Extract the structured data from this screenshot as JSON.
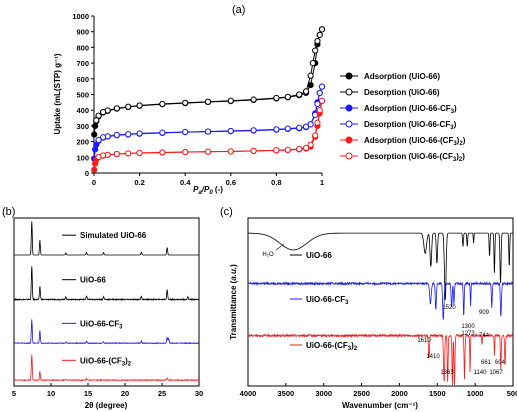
{
  "chart_data": [
    {
      "panel_label": "(a)",
      "type": "scatter",
      "ylabel": "Uptake (mL(STP) g⁻¹)",
      "xlabel": "Pₐ/P₀ (-)",
      "xlabel_parts": {
        "p1": "P",
        "s1": "a",
        "p2": "/P",
        "s2": "0",
        "p3": " (-)"
      },
      "xlim": [
        0,
        1
      ],
      "ylim": [
        0,
        1000
      ],
      "xticks": [
        "0",
        "0.2",
        "0.4",
        "0.6",
        "0.8",
        "1"
      ],
      "yticks": [
        "0",
        "100",
        "200",
        "300",
        "400",
        "500",
        "600",
        "700",
        "800",
        "900",
        "1000"
      ],
      "legend_position": "right",
      "series": [
        {
          "name": "Adsorption (UiO-66)",
          "name_parts": [
            "Adsorption (UiO-66)"
          ],
          "color": "#000000",
          "filled": true,
          "x": [
            0.001,
            0.005,
            0.01,
            0.02,
            0.04,
            0.06,
            0.1,
            0.15,
            0.2,
            0.3,
            0.4,
            0.5,
            0.6,
            0.7,
            0.8,
            0.85,
            0.9,
            0.93,
            0.95,
            0.97,
            0.98,
            0.99,
            1.0
          ],
          "y": [
            245,
            300,
            330,
            360,
            385,
            395,
            410,
            420,
            428,
            438,
            445,
            452,
            458,
            465,
            475,
            482,
            495,
            510,
            560,
            700,
            820,
            880,
            915
          ]
        },
        {
          "name": "Desorption (UiO-66)",
          "name_parts": [
            "Desorption (UiO-66)"
          ],
          "color": "#000000",
          "filled": false,
          "x": [
            1.0,
            0.99,
            0.98,
            0.97,
            0.96,
            0.95,
            0.93,
            0.9,
            0.85,
            0.8,
            0.7,
            0.6,
            0.5,
            0.4,
            0.3,
            0.2,
            0.15,
            0.1,
            0.06,
            0.04,
            0.02,
            0.01
          ],
          "y": [
            915,
            880,
            840,
            780,
            700,
            620,
            520,
            500,
            485,
            478,
            468,
            460,
            454,
            447,
            440,
            430,
            422,
            412,
            398,
            388,
            365,
            335
          ]
        },
        {
          "name": "Adsorption (UiO-66-CF3)",
          "name_parts": [
            "Adsorption (UiO-66-CF",
            "3",
            ")"
          ],
          "color": "#1a1aff",
          "filled": true,
          "x": [
            0.001,
            0.005,
            0.01,
            0.02,
            0.04,
            0.06,
            0.1,
            0.15,
            0.2,
            0.3,
            0.4,
            0.5,
            0.6,
            0.7,
            0.8,
            0.85,
            0.9,
            0.93,
            0.95,
            0.97,
            0.98,
            0.99,
            1.0
          ],
          "y": [
            90,
            150,
            180,
            205,
            225,
            232,
            240,
            245,
            250,
            255,
            260,
            263,
            266,
            270,
            275,
            280,
            285,
            292,
            310,
            380,
            450,
            510,
            550
          ]
        },
        {
          "name": "Desorption (UiO-66-CF3)",
          "name_parts": [
            "Desorption (UiO-66-CF",
            "3",
            ")"
          ],
          "color": "#1a1aff",
          "filled": false,
          "x": [
            1.0,
            0.99,
            0.98,
            0.97,
            0.95,
            0.93,
            0.9,
            0.85,
            0.8,
            0.7,
            0.6,
            0.5,
            0.4,
            0.3,
            0.2,
            0.15,
            0.1,
            0.06,
            0.04,
            0.02
          ],
          "y": [
            550,
            510,
            440,
            370,
            310,
            295,
            288,
            283,
            278,
            272,
            268,
            264,
            261,
            257,
            252,
            247,
            242,
            234,
            228,
            210
          ]
        },
        {
          "name": "Adsorption (UiO-66-(CF3)2)",
          "name_parts": [
            "Adsorption (UiO-66-(CF",
            "3",
            ")",
            "2",
            ")"
          ],
          "color": "#ff1a1a",
          "filled": true,
          "x": [
            0.001,
            0.005,
            0.01,
            0.02,
            0.04,
            0.06,
            0.1,
            0.15,
            0.2,
            0.3,
            0.4,
            0.5,
            0.6,
            0.7,
            0.8,
            0.85,
            0.9,
            0.93,
            0.95,
            0.97,
            0.98,
            0.99,
            1.0
          ],
          "y": [
            20,
            60,
            85,
            100,
            110,
            115,
            120,
            124,
            127,
            130,
            133,
            135,
            137,
            140,
            143,
            146,
            150,
            156,
            168,
            230,
            300,
            380,
            460
          ]
        },
        {
          "name": "Desorption (UiO-66-(CF3)2)",
          "name_parts": [
            "Desorption (UiO-66-(CF",
            "3",
            ")",
            "2",
            ")"
          ],
          "color": "#ff1a1a",
          "filled": false,
          "x": [
            1.0,
            0.99,
            0.98,
            0.97,
            0.95,
            0.93,
            0.9,
            0.85,
            0.8,
            0.7,
            0.6,
            0.5,
            0.4,
            0.3,
            0.2,
            0.15,
            0.1,
            0.06,
            0.04,
            0.02
          ],
          "y": [
            460,
            400,
            320,
            240,
            180,
            160,
            153,
            148,
            145,
            141,
            138,
            136,
            134,
            131,
            128,
            125,
            121,
            116,
            112,
            103
          ]
        }
      ]
    },
    {
      "panel_label": "(b)",
      "type": "line",
      "xlabel": "2θ (degree)",
      "xlim": [
        5,
        30
      ],
      "xticks": [
        "5",
        "10",
        "15",
        "20",
        "25",
        "30"
      ],
      "series": [
        {
          "name": "Simulated UiO-66",
          "name_parts": [
            "Simulated UiO-66"
          ],
          "color": "#000000",
          "offset": 0.78,
          "scale": 0.2,
          "peaks": [
            [
              7.4,
              1.0
            ],
            [
              8.5,
              0.45
            ],
            [
              12.0,
              0.06
            ],
            [
              14.8,
              0.08
            ],
            [
              17.1,
              0.07
            ],
            [
              22.2,
              0.08
            ],
            [
              25.7,
              0.22
            ],
            [
              30.7,
              0.08
            ]
          ]
        },
        {
          "name": "UiO-66",
          "name_parts": [
            "UiO-66"
          ],
          "color": "#000000",
          "offset": 0.515,
          "scale": 0.2,
          "peaks": [
            [
              7.4,
              1.0
            ],
            [
              8.5,
              0.4
            ],
            [
              12.0,
              0.08
            ],
            [
              14.8,
              0.1
            ],
            [
              17.1,
              0.08
            ],
            [
              22.2,
              0.1
            ],
            [
              25.7,
              0.3
            ],
            [
              28.5,
              0.08
            ]
          ]
        },
        {
          "name": "UiO-66-CF3",
          "name_parts": [
            "UiO-66-CF",
            "3"
          ],
          "color": "#1a1aff",
          "offset": 0.255,
          "scale": 0.14,
          "peaks": [
            [
              7.4,
              1.0
            ],
            [
              8.5,
              0.55
            ],
            [
              12.0,
              0.05
            ],
            [
              14.8,
              0.07
            ],
            [
              17.1,
              0.06
            ],
            [
              22.2,
              0.08
            ],
            [
              25.7,
              0.25
            ],
            [
              25.9,
              0.2
            ]
          ]
        },
        {
          "name": "UiO-66-(CF3)2",
          "name_parts": [
            "UiO-66-(CF",
            "3",
            ")",
            "2"
          ],
          "color": "#ff1a1a",
          "offset": 0.035,
          "scale": 0.15,
          "peaks": [
            [
              7.4,
              1.0
            ],
            [
              8.5,
              0.35
            ],
            [
              12.0,
              0.04
            ],
            [
              14.8,
              0.06
            ],
            [
              25.7,
              0.1
            ]
          ]
        }
      ]
    },
    {
      "panel_label": "(c)",
      "type": "line",
      "xlabel": "Wavenumber (cm⁻¹)",
      "ylabel": "Transmittance (a.u.)",
      "ylabel_parts": {
        "a": "Transmittance (",
        "b": "a.u.",
        "c": ")"
      },
      "xlim": [
        4000,
        500
      ],
      "xticks": [
        "4000",
        "3500",
        "3000",
        "2500",
        "2000",
        "1500",
        "1000",
        "500"
      ],
      "series": [
        {
          "name": "UiO-66",
          "name_parts": [
            "UiO-66"
          ],
          "color": "#000000",
          "base": 0.91,
          "bands": [
            [
              3400,
              250,
              0.1
            ],
            [
              1660,
              25,
              0.12
            ],
            [
              1585,
              15,
              0.2
            ],
            [
              1505,
              12,
              0.18
            ],
            [
              1395,
              15,
              0.4
            ],
            [
              1160,
              8,
              0.08
            ],
            [
              1105,
              8,
              0.08
            ],
            [
              1020,
              6,
              0.06
            ],
            [
              810,
              8,
              0.14
            ],
            [
              745,
              8,
              0.24
            ],
            [
              665,
              10,
              0.3
            ],
            [
              550,
              8,
              0.2
            ]
          ]
        },
        {
          "name": "UiO-66-CF3",
          "name_parts": [
            "UiO-66-CF",
            "3"
          ],
          "color": "#1a1aff",
          "base": 0.61,
          "bands": [
            [
              1590,
              15,
              0.12
            ],
            [
              1520,
              10,
              0.16
            ],
            [
              1420,
              12,
              0.22
            ],
            [
              1310,
              10,
              0.14
            ],
            [
              1280,
              8,
              0.12
            ],
            [
              1150,
              8,
              0.2
            ],
            [
              1060,
              6,
              0.14
            ],
            [
              780,
              8,
              0.14
            ],
            [
              660,
              10,
              0.2
            ]
          ]
        },
        {
          "name": "UiO-66-(CF3)2",
          "name_parts": [
            "UiO-66-(CF",
            "3",
            ")",
            "2"
          ],
          "color": "#ff1a1a",
          "base": 0.3,
          "bands": [
            [
              1610,
              10,
              0.14
            ],
            [
              1410,
              10,
              0.28
            ],
            [
              1363,
              8,
              0.28
            ],
            [
              1300,
              8,
              0.3
            ],
            [
              1273,
              8,
              0.3
            ],
            [
              1140,
              8,
              0.26
            ],
            [
              1067,
              6,
              0.22
            ],
            [
              909,
              6,
              0.06
            ],
            [
              744,
              6,
              0.12
            ],
            [
              661,
              8,
              0.2
            ],
            [
              604,
              8,
              0.18
            ]
          ]
        }
      ],
      "annotations": [
        "H₂O",
        "1520",
        "1610",
        "1410",
        "1363",
        "1300",
        "1273",
        "1140",
        "909",
        "1067",
        "744",
        "661",
        "604"
      ]
    }
  ]
}
